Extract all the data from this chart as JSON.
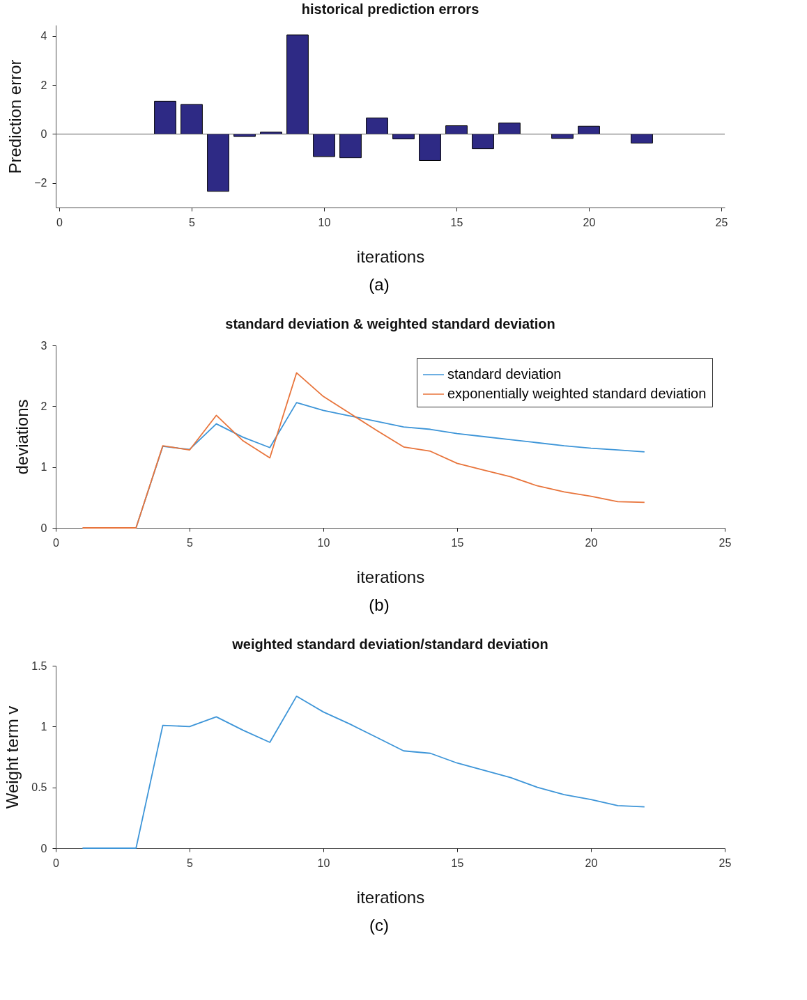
{
  "chart_data": [
    {
      "type": "bar",
      "title": "historical prediction errors",
      "xlabel": "iterations",
      "ylabel": "Prediction error",
      "annotations": [
        "(a)"
      ],
      "x": [
        4,
        5,
        6,
        7,
        8,
        9,
        10,
        11,
        12,
        13,
        14,
        15,
        16,
        17,
        18,
        19,
        20,
        21,
        22
      ],
      "values": [
        1.34,
        1.21,
        -2.34,
        -0.1,
        0.08,
        4.05,
        -0.92,
        -0.97,
        0.66,
        -0.2,
        -1.08,
        0.34,
        -0.6,
        0.45,
        null,
        -0.18,
        0.32,
        null,
        -0.37
      ],
      "color": "#2e2a85",
      "xlim": [
        0,
        25
      ],
      "xticks": [
        0,
        5,
        10,
        15,
        20,
        25
      ],
      "ylim": [
        -3,
        4.45
      ],
      "yticks": [
        -2,
        0,
        2,
        4
      ],
      "ref_lines": [
        {
          "axis": "y",
          "value": 0,
          "color": "#555555"
        }
      ],
      "grid": false
    },
    {
      "type": "line",
      "title": "standard deviation & weighted standard deviation",
      "xlabel": "iterations",
      "ylabel": "deviations",
      "annotations": [
        "(b)"
      ],
      "x": [
        1,
        2,
        3,
        4,
        5,
        6,
        7,
        8,
        9,
        10,
        11,
        12,
        13,
        14,
        15,
        16,
        17,
        18,
        19,
        20,
        21,
        22
      ],
      "series": [
        {
          "name": "standard deviation",
          "color": "#3d95d8",
          "values": [
            null,
            null,
            0,
            1.34,
            1.29,
            1.71,
            1.49,
            1.32,
            2.06,
            1.93,
            1.84,
            1.75,
            1.66,
            1.62,
            1.55,
            1.5,
            1.45,
            1.4,
            1.35,
            1.31,
            1.28,
            1.25
          ]
        },
        {
          "name": "exponentially weighted standard deviation",
          "color": "#e8743b",
          "values": [
            0,
            0,
            0,
            1.35,
            1.28,
            1.85,
            1.43,
            1.15,
            2.55,
            2.16,
            1.88,
            1.6,
            1.33,
            1.26,
            1.06,
            0.95,
            0.84,
            0.69,
            0.59,
            0.52,
            0.43,
            0.42
          ]
        }
      ],
      "xlim": [
        0,
        25
      ],
      "xticks": [
        0,
        5,
        10,
        15,
        20,
        25
      ],
      "ylim": [
        0,
        3
      ],
      "yticks": [
        0,
        1,
        2,
        3
      ],
      "legend": "top right",
      "grid": false
    },
    {
      "type": "line",
      "title": "weighted standard deviation/standard deviation",
      "xlabel": "iterations",
      "ylabel": "Weight term v",
      "annotations": [
        "(c)"
      ],
      "x": [
        1,
        2,
        3,
        4,
        5,
        6,
        7,
        8,
        9,
        10,
        11,
        12,
        13,
        14,
        15,
        16,
        17,
        18,
        19,
        20,
        21,
        22
      ],
      "series": [
        {
          "color": "#3d95d8",
          "values": [
            0,
            0,
            0,
            1.01,
            1,
            1.08,
            0.97,
            0.87,
            1.25,
            1.12,
            1.02,
            0.91,
            0.8,
            0.78,
            0.7,
            0.64,
            0.58,
            0.5,
            0.44,
            0.4,
            0.35,
            0.34
          ]
        }
      ],
      "xlim": [
        0,
        25
      ],
      "xticks": [
        0,
        5,
        10,
        15,
        20,
        25
      ],
      "ylim": [
        0,
        1.5
      ],
      "yticks": [
        0,
        0.5,
        1,
        1.5
      ],
      "grid": false
    }
  ]
}
